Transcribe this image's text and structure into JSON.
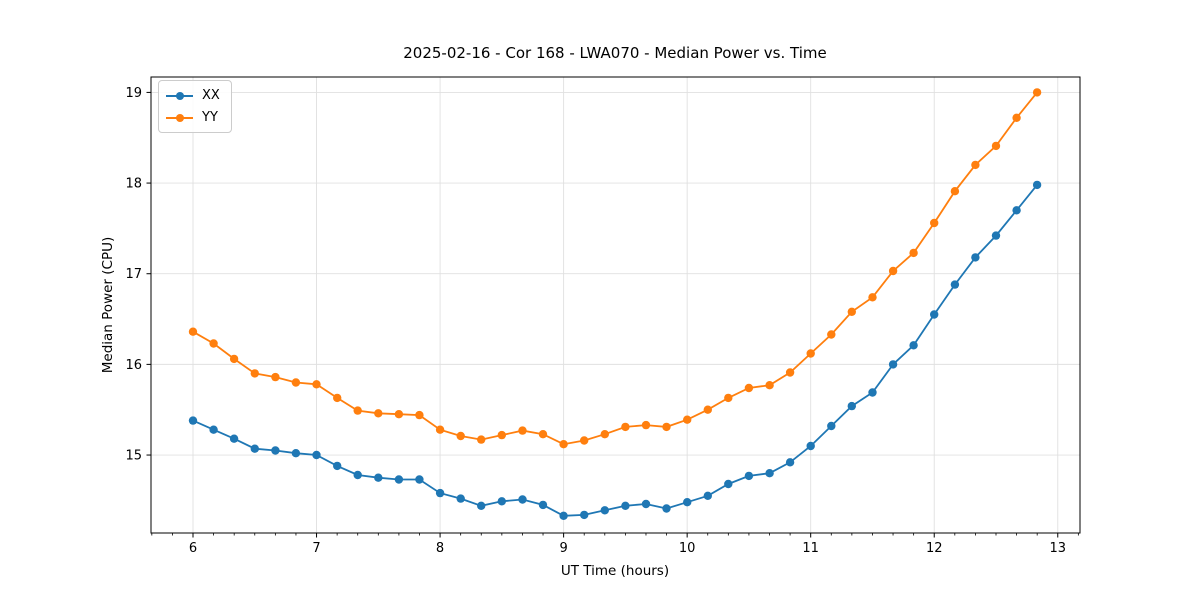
{
  "window": {
    "background": "#ffffff"
  },
  "chart_data": {
    "type": "line",
    "title": "2025-02-16 - Cor 168 - LWA070 - Median Power vs. Time",
    "xlabel": "UT Time (hours)",
    "ylabel": "Median Power (CPU)",
    "xlim": [
      5.66,
      13.18
    ],
    "ylim": [
      14.14,
      19.17
    ],
    "x_major_ticks": [
      6,
      7,
      8,
      9,
      10,
      11,
      12,
      13
    ],
    "x_minor_step_hours": 0.1667,
    "y_major_ticks": [
      15,
      16,
      17,
      18,
      19
    ],
    "grid": true,
    "legend_position": "upper-left",
    "marker": "circle",
    "x": [
      6.0,
      6.167,
      6.333,
      6.5,
      6.667,
      6.833,
      7.0,
      7.167,
      7.333,
      7.5,
      7.667,
      7.833,
      8.0,
      8.167,
      8.333,
      8.5,
      8.667,
      8.833,
      9.0,
      9.167,
      9.333,
      9.5,
      9.667,
      9.833,
      10.0,
      10.167,
      10.333,
      10.5,
      10.667,
      10.833,
      11.0,
      11.167,
      11.333,
      11.5,
      11.667,
      11.833,
      12.0,
      12.167,
      12.333,
      12.5,
      12.667,
      12.833
    ],
    "series": [
      {
        "name": "XX",
        "color": "#1f77b4",
        "values": [
          15.38,
          15.28,
          15.18,
          15.07,
          15.05,
          15.02,
          15.0,
          14.88,
          14.78,
          14.75,
          14.73,
          14.73,
          14.58,
          14.52,
          14.44,
          14.49,
          14.51,
          14.45,
          14.33,
          14.34,
          14.39,
          14.44,
          14.46,
          14.41,
          14.48,
          14.55,
          14.68,
          14.77,
          14.8,
          14.92,
          15.1,
          15.32,
          15.54,
          15.69,
          16.0,
          16.21,
          16.55,
          16.88,
          17.18,
          17.42,
          17.7,
          17.98
        ]
      },
      {
        "name": "YY",
        "color": "#ff7f0e",
        "values": [
          16.36,
          16.23,
          16.06,
          15.9,
          15.86,
          15.8,
          15.78,
          15.63,
          15.49,
          15.46,
          15.45,
          15.44,
          15.28,
          15.21,
          15.17,
          15.22,
          15.27,
          15.23,
          15.12,
          15.16,
          15.23,
          15.31,
          15.33,
          15.31,
          15.39,
          15.5,
          15.63,
          15.74,
          15.77,
          15.91,
          16.12,
          16.33,
          16.58,
          16.74,
          17.03,
          17.23,
          17.56,
          17.91,
          18.2,
          18.41,
          18.72,
          19.0
        ]
      }
    ],
    "colors": {
      "grid": "#e0e0e0",
      "spine": "#000000",
      "tick": "#000000",
      "text": "#000000"
    }
  }
}
